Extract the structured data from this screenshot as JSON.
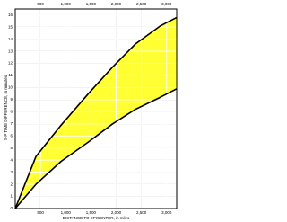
{
  "chart_data": {
    "type": "band",
    "x_label": "DISTANCE TO EPICENTER, in miles",
    "y_label": "S-P TIME DIFFERENCE, in minutes",
    "x": [
      0,
      410,
      910,
      1450,
      1930,
      2380,
      2875,
      3200
    ],
    "series": [
      {
        "color": "#000000",
        "values": [
          0,
          4.3,
          6.9,
          9.5,
          11.7,
          13.6,
          15.1,
          15.8
        ]
      },
      {
        "color": "#000000",
        "values": [
          0,
          2.0,
          3.9,
          5.5,
          7.0,
          8.2,
          9.2,
          9.9
        ]
      }
    ],
    "fill_color": "#ffff33",
    "xlim": [
      0,
      3200
    ],
    "ylim": [
      0,
      16.5
    ],
    "xticks": [
      500,
      {
        "value": 1000,
        "label": "1,000"
      },
      {
        "value": 1500,
        "label": "1,500"
      },
      {
        "value": 2000,
        "label": "2,000"
      },
      {
        "value": 2500,
        "label": "2,500"
      },
      {
        "value": 3000,
        "label": "3,000"
      }
    ],
    "yticks": [
      0,
      1,
      2,
      3,
      4,
      5,
      6,
      7,
      8,
      9,
      10,
      11,
      12,
      13,
      14,
      15,
      16
    ],
    "grid": true
  }
}
